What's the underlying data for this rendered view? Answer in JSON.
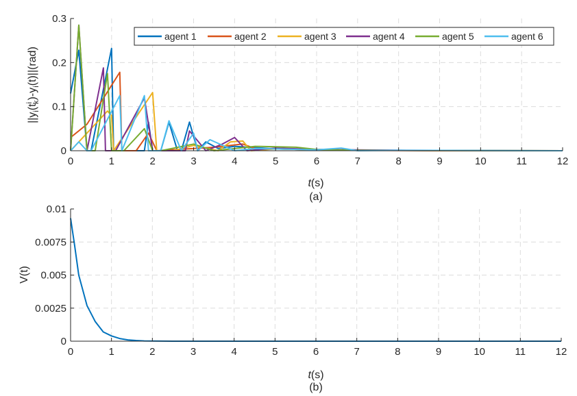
{
  "chart_data": [
    {
      "panel_label": "(a)",
      "type": "line",
      "ylabel_parts": {
        "pre": "||y",
        "sub_i1": "i",
        "mid1": "(t",
        "sup_i": "i",
        "sub_k": "k",
        "mid2": ")-y",
        "sub_i2": "i",
        "post": "(t)||(rad)"
      },
      "xlabel": {
        "var": "t",
        "unit": "(s)"
      },
      "xlim": [
        0,
        12
      ],
      "ylim": [
        0,
        0.3
      ],
      "xticks": [
        "0",
        "1",
        "2",
        "3",
        "4",
        "5",
        "6",
        "7",
        "8",
        "9",
        "10",
        "11",
        "12"
      ],
      "yticks": [
        "0",
        "0.1",
        "0.2",
        "0.3"
      ],
      "grid": true,
      "legend_position": "top-right",
      "series": [
        {
          "name": "agent 1",
          "color": "#0072BD",
          "x": [
            0,
            0.2,
            0.4,
            0.5,
            1.0,
            1.05,
            1.8,
            1.9,
            2.0,
            2.2,
            2.4,
            2.6,
            2.7,
            2.9,
            3.1,
            3.3,
            3.6,
            4.0,
            5.0,
            6.0,
            7.0,
            8.0,
            9.0,
            10.0,
            11.0,
            12.0
          ],
          "y": [
            0.13,
            0.228,
            0.0,
            0.0,
            0.232,
            0.0,
            0.0,
            0.065,
            0.0,
            0.0,
            0.065,
            0.002,
            0.0,
            0.065,
            0.0,
            0.02,
            0.005,
            0.01,
            0.004,
            0.002,
            0.001,
            0.001,
            0.0,
            0.0,
            0.0,
            0.0
          ]
        },
        {
          "name": "agent 2",
          "color": "#D95319",
          "x": [
            0,
            0.4,
            1.2,
            1.25,
            1.6,
            1.9,
            2.1,
            3.5,
            4.2,
            4.5,
            5.0,
            6.0,
            7.0,
            9.0,
            12.0
          ],
          "y": [
            0.03,
            0.06,
            0.178,
            0.0,
            0.0,
            0.04,
            0.0,
            0.008,
            0.015,
            0.005,
            0.004,
            0.002,
            0.001,
            0.0,
            0.0
          ]
        },
        {
          "name": "agent 3",
          "color": "#EDB120",
          "x": [
            0,
            0.9,
            1.0,
            1.05,
            2.0,
            2.1,
            2.5,
            3.0,
            3.6,
            3.9,
            4.2,
            4.4,
            5.0,
            6.0,
            7.0,
            12.0
          ],
          "y": [
            0.0,
            0.09,
            0.08,
            0.0,
            0.132,
            0.0,
            0.0,
            0.012,
            0.0,
            0.02,
            0.022,
            0.0,
            0.004,
            0.002,
            0.001,
            0.0
          ]
        },
        {
          "name": "agent 4",
          "color": "#7E2F8E",
          "x": [
            0,
            0.2,
            0.4,
            0.8,
            0.85,
            1.1,
            1.8,
            2.0,
            2.2,
            2.8,
            2.9,
            3.3,
            3.7,
            4.0,
            4.3,
            5.0,
            6.0,
            8.0,
            12.0
          ],
          "y": [
            0.0,
            0.285,
            0.0,
            0.188,
            0.0,
            0.0,
            0.12,
            0.0,
            0.0,
            0.0,
            0.045,
            0.0,
            0.015,
            0.03,
            0.0,
            0.006,
            0.003,
            0.001,
            0.0
          ]
        },
        {
          "name": "agent 5",
          "color": "#77AC30",
          "x": [
            0,
            0.2,
            0.4,
            0.6,
            0.9,
            1.0,
            1.3,
            1.8,
            2.0,
            2.2,
            3.0,
            3.5,
            4.5,
            5.5,
            6.0,
            7.0,
            12.0
          ],
          "y": [
            0.0,
            0.285,
            0.0,
            0.0,
            0.175,
            0.0,
            0.0,
            0.05,
            0.0,
            0.0,
            0.015,
            0.0,
            0.01,
            0.008,
            0.003,
            0.001,
            0.0
          ]
        },
        {
          "name": "agent 6",
          "color": "#4DBEEE",
          "x": [
            0,
            0.2,
            0.4,
            0.5,
            1.2,
            1.25,
            1.8,
            1.9,
            2.2,
            2.4,
            2.7,
            3.0,
            3.1,
            3.4,
            4.0,
            4.5,
            5.0,
            6.0,
            6.6,
            7.0,
            8.0,
            12.0
          ],
          "y": [
            0.0,
            0.02,
            0.0,
            0.0,
            0.125,
            0.0,
            0.125,
            0.0,
            0.0,
            0.068,
            0.0,
            0.04,
            0.0,
            0.025,
            0.0,
            0.005,
            0.004,
            0.002,
            0.006,
            0.0,
            0.001,
            0.0
          ]
        }
      ]
    },
    {
      "panel_label": "(b)",
      "type": "line",
      "ylabel": "V(t)",
      "xlabel": {
        "var": "t",
        "unit": "(s)"
      },
      "xlim": [
        0,
        12
      ],
      "ylim": [
        0,
        0.01
      ],
      "xticks": [
        "0",
        "1",
        "2",
        "3",
        "4",
        "5",
        "6",
        "7",
        "8",
        "9",
        "10",
        "11",
        "12"
      ],
      "yticks": [
        "0",
        "0.0025",
        "0.005",
        "0.0075",
        "0.01"
      ],
      "grid": true,
      "series": [
        {
          "color": "#0072BD",
          "x": [
            0,
            0.1,
            0.2,
            0.4,
            0.6,
            0.8,
            1.0,
            1.2,
            1.4,
            1.6,
            1.8,
            2.0,
            2.5,
            3.0,
            4.0,
            6.0,
            8.0,
            10.0,
            12.0
          ],
          "y": [
            0.0093,
            0.0072,
            0.005,
            0.0027,
            0.0015,
            0.0007,
            0.0004,
            0.0002,
            0.0001,
            5e-05,
            2e-05,
            1e-05,
            0.0,
            0.0,
            0.0,
            0.0,
            0.0,
            0.0,
            0.0
          ]
        }
      ]
    }
  ]
}
